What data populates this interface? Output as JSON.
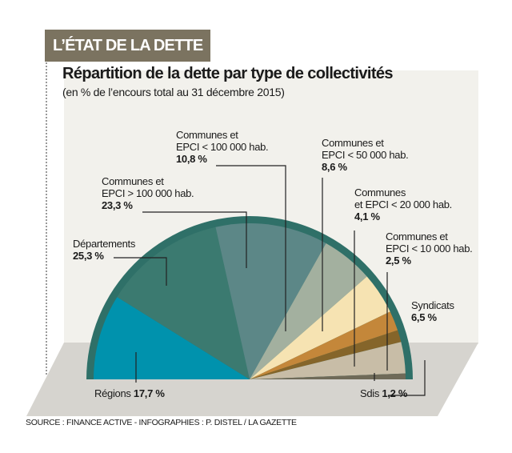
{
  "header": {
    "tag": "L’ÉTAT DE LA DETTE",
    "title": "Répartition de la dette par type de collectivités",
    "subtitle": "(en % de l’encours total au 31 décembre 2015)"
  },
  "chart_data": {
    "type": "pie",
    "variant": "semicircle",
    "title": "Répartition de la dette par type de collectivités",
    "subtitle": "(en % de l’encours total au 31 décembre 2015)",
    "unit": "%",
    "slices": [
      {
        "label": "Régions",
        "value": 17.7,
        "value_text": "17,7 %",
        "color": "#0092ad"
      },
      {
        "label": "Départements",
        "value": 25.3,
        "value_text": "25,3 %",
        "color": "#3b7a70"
      },
      {
        "label": "Communes et EPCI > 100 000 hab.",
        "value": 23.3,
        "value_text": "23,3 %",
        "color": "#5c8787"
      },
      {
        "label": "Communes et EPCI < 100 000 hab.",
        "value": 10.8,
        "value_text": "10,8 %",
        "color": "#a3b09f"
      },
      {
        "label": "Communes et EPCI < 50 000 hab.",
        "value": 8.6,
        "value_text": "8,6 %",
        "color": "#f6e3b2"
      },
      {
        "label": "Communes et EPCI < 20 000 hab.",
        "value": 4.1,
        "value_text": "4,1 %",
        "color": "#c4873a"
      },
      {
        "label": "Communes et EPCI < 10 000 hab.",
        "value": 2.5,
        "value_text": "2,5 %",
        "color": "#85652a"
      },
      {
        "label": "Syndicats",
        "value": 6.5,
        "value_text": "6,5 %",
        "color": "#c8bda7"
      },
      {
        "label": "Sdis",
        "value": 1.2,
        "value_text": "1,2 %",
        "color": "#6f6a58"
      }
    ],
    "ring_color": "#2f7068"
  },
  "labels": {
    "regions": {
      "name": "Régions",
      "value": "17,7 %"
    },
    "departements": {
      "name": "Départements",
      "value": "25,3 %"
    },
    "c100k_plus": {
      "line1": "Communes et",
      "line2": "EPCI > 100 000 hab.",
      "value": "23,3 %"
    },
    "c100k": {
      "line1": "Communes et",
      "line2": "EPCI < 100 000 hab.",
      "value": "10,8 %"
    },
    "c50k": {
      "line1": "Communes et",
      "line2": "EPCI < 50 000 hab.",
      "value": "8,6 %"
    },
    "c20k": {
      "line1": "Communes",
      "line2": "et EPCI < 20 000 hab.",
      "value": "4,1 %"
    },
    "c10k": {
      "line1": "Communes et",
      "line2": "EPCI < 10 000 hab.",
      "value": "2,5 %"
    },
    "syndicats": {
      "name": "Syndicats",
      "value": "6,5 %"
    },
    "sdis": {
      "name": "Sdis",
      "value": "1,2 %"
    }
  },
  "footer": {
    "source": "SOURCE : FINANCE ACTIVE - INFOGRAPHIES : P. DISTEL / LA GAZETTE"
  }
}
